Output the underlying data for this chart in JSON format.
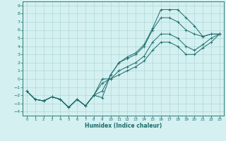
{
  "xlabel": "Humidex (Indice chaleur)",
  "bg_color": "#d4f0f0",
  "grid_color": "#b0d8d8",
  "line_color": "#1a6b6b",
  "spine_color": "#2a7a7a",
  "xlim": [
    -0.5,
    23.5
  ],
  "ylim": [
    -4.5,
    9.5
  ],
  "xticks": [
    0,
    1,
    2,
    3,
    4,
    5,
    6,
    7,
    8,
    9,
    10,
    11,
    12,
    13,
    14,
    15,
    16,
    17,
    18,
    19,
    20,
    21,
    22,
    23
  ],
  "yticks": [
    -4,
    -3,
    -2,
    -1,
    0,
    1,
    2,
    3,
    4,
    5,
    6,
    7,
    8,
    9
  ],
  "series": [
    {
      "x": [
        0,
        1,
        2,
        3,
        4,
        5,
        6,
        7,
        8,
        9,
        10,
        11,
        12,
        13,
        14,
        15,
        16,
        17,
        18,
        19,
        20,
        21,
        22,
        23
      ],
      "y": [
        -1.5,
        -2.5,
        -2.7,
        -2.2,
        -2.5,
        -3.5,
        -2.5,
        -3.3,
        -2.0,
        -2.3,
        0.5,
        2.0,
        2.7,
        3.2,
        4.2,
        6.2,
        8.5,
        8.5,
        8.5,
        7.5,
        6.5,
        5.2,
        5.5,
        5.5
      ]
    },
    {
      "x": [
        0,
        1,
        2,
        3,
        4,
        5,
        6,
        7,
        8,
        9,
        10,
        11,
        12,
        13,
        14,
        15,
        16,
        17,
        18,
        19,
        20,
        21,
        22,
        23
      ],
      "y": [
        -1.5,
        -2.5,
        -2.7,
        -2.2,
        -2.5,
        -3.5,
        -2.5,
        -3.3,
        -2.0,
        -1.5,
        0.5,
        2.0,
        2.5,
        3.0,
        4.0,
        6.0,
        7.5,
        7.5,
        7.0,
        6.0,
        5.5,
        5.2,
        5.5,
        5.5
      ]
    },
    {
      "x": [
        0,
        1,
        2,
        3,
        4,
        5,
        6,
        7,
        8,
        9,
        10,
        11,
        12,
        13,
        14,
        15,
        16,
        17,
        18,
        19,
        20,
        21,
        22,
        23
      ],
      "y": [
        -1.5,
        -2.5,
        -2.7,
        -2.2,
        -2.5,
        -3.5,
        -2.5,
        -3.3,
        -2.0,
        -0.5,
        0.0,
        1.0,
        1.5,
        2.0,
        2.8,
        4.5,
        5.5,
        5.5,
        5.0,
        4.0,
        3.5,
        4.2,
        5.0,
        5.5
      ]
    },
    {
      "x": [
        0,
        1,
        2,
        3,
        4,
        5,
        6,
        7,
        8,
        9,
        10,
        11,
        12,
        13,
        14,
        15,
        16,
        17,
        18,
        19,
        20,
        21,
        22,
        23
      ],
      "y": [
        -1.5,
        -2.5,
        -2.7,
        -2.2,
        -2.5,
        -3.5,
        -2.5,
        -3.3,
        -2.0,
        0.0,
        0.0,
        0.5,
        1.0,
        1.5,
        2.2,
        3.5,
        4.5,
        4.5,
        4.0,
        3.0,
        3.0,
        3.8,
        4.5,
        5.5
      ]
    }
  ]
}
